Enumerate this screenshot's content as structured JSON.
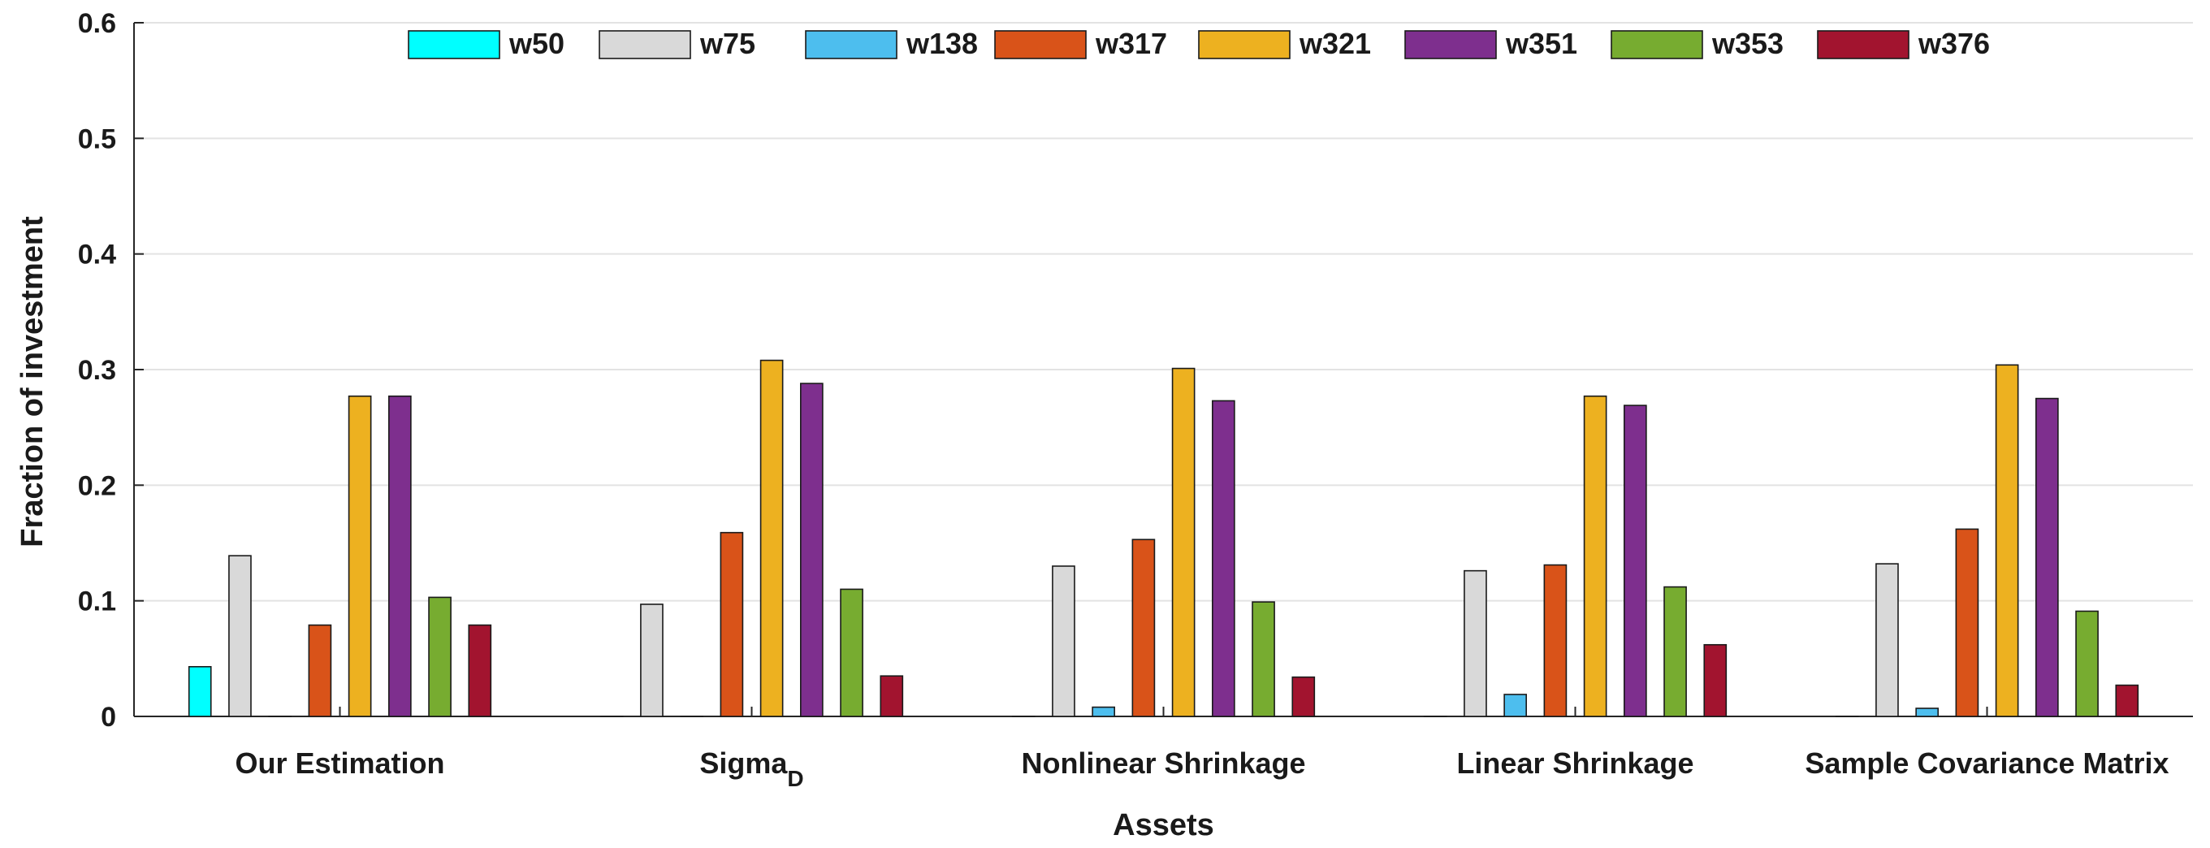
{
  "chart_data": {
    "type": "bar",
    "xlabel": "Assets",
    "ylabel": "Fraction of investment",
    "ylim": [
      0,
      0.6
    ],
    "yticks": [
      "0",
      "0.1",
      "0.2",
      "0.3",
      "0.4",
      "0.5",
      "0.6"
    ],
    "grid": true,
    "legend_position": "top",
    "categories": [
      {
        "base": "Our Estimation",
        "sub": ""
      },
      {
        "base": "Sigma",
        "sub": "D"
      },
      {
        "base": "Nonlinear Shrinkage",
        "sub": ""
      },
      {
        "base": "Linear Shrinkage",
        "sub": ""
      },
      {
        "base": "Sample Covariance Matrix",
        "sub": ""
      }
    ],
    "series": [
      {
        "name": "w50",
        "color": "#00ffff",
        "values": [
          0.043,
          0.0,
          0.0,
          0.0,
          0.0
        ]
      },
      {
        "name": "w75",
        "color": "#d9d9d9",
        "values": [
          0.139,
          0.097,
          0.13,
          0.126,
          0.132
        ]
      },
      {
        "name": "w138",
        "color": "#4dbeee",
        "values": [
          0.0,
          0.0,
          0.008,
          0.019,
          0.007
        ]
      },
      {
        "name": "w317",
        "color": "#d95319",
        "values": [
          0.079,
          0.159,
          0.153,
          0.131,
          0.162
        ]
      },
      {
        "name": "w321",
        "color": "#edb120",
        "values": [
          0.277,
          0.308,
          0.301,
          0.277,
          0.304
        ]
      },
      {
        "name": "w351",
        "color": "#7e2f8e",
        "values": [
          0.277,
          0.288,
          0.273,
          0.269,
          0.275
        ]
      },
      {
        "name": "w353",
        "color": "#77ac30",
        "values": [
          0.103,
          0.11,
          0.099,
          0.112,
          0.091
        ]
      },
      {
        "name": "w376",
        "color": "#a2142f",
        "values": [
          0.079,
          0.035,
          0.034,
          0.062,
          0.027
        ]
      }
    ]
  }
}
